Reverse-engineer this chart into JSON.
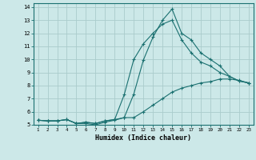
{
  "xlabel": "Humidex (Indice chaleur)",
  "background_color": "#cce8e8",
  "grid_color": "#aacccc",
  "line_color": "#1a7070",
  "xlim": [
    0.5,
    23.5
  ],
  "ylim": [
    5,
    14.3
  ],
  "xticks": [
    1,
    2,
    3,
    4,
    5,
    6,
    7,
    8,
    9,
    10,
    11,
    12,
    13,
    14,
    15,
    16,
    17,
    18,
    19,
    20,
    21,
    22,
    23
  ],
  "yticks": [
    5,
    6,
    7,
    8,
    9,
    10,
    11,
    12,
    13,
    14
  ],
  "x": [
    1,
    2,
    3,
    4,
    5,
    6,
    7,
    8,
    9,
    10,
    11,
    12,
    13,
    14,
    15,
    16,
    17,
    18,
    19,
    20,
    21,
    22,
    23
  ],
  "line1": [
    5.35,
    5.3,
    5.3,
    5.4,
    5.1,
    5.1,
    5.0,
    5.2,
    5.35,
    5.55,
    7.35,
    9.95,
    11.7,
    13.0,
    13.85,
    12.0,
    11.5,
    10.5,
    10.0,
    9.5,
    8.7,
    8.35,
    8.2
  ],
  "line2": [
    5.35,
    5.3,
    5.3,
    5.4,
    5.1,
    5.2,
    5.1,
    5.3,
    5.4,
    7.3,
    10.0,
    11.2,
    12.0,
    12.7,
    13.0,
    11.5,
    10.5,
    9.8,
    9.5,
    9.0,
    8.7,
    8.35,
    8.2
  ],
  "line3": [
    5.35,
    5.3,
    5.3,
    5.4,
    5.1,
    5.2,
    5.1,
    5.3,
    5.4,
    5.55,
    5.55,
    6.0,
    6.5,
    7.0,
    7.5,
    7.8,
    8.0,
    8.2,
    8.3,
    8.5,
    8.5,
    8.4,
    8.2
  ]
}
